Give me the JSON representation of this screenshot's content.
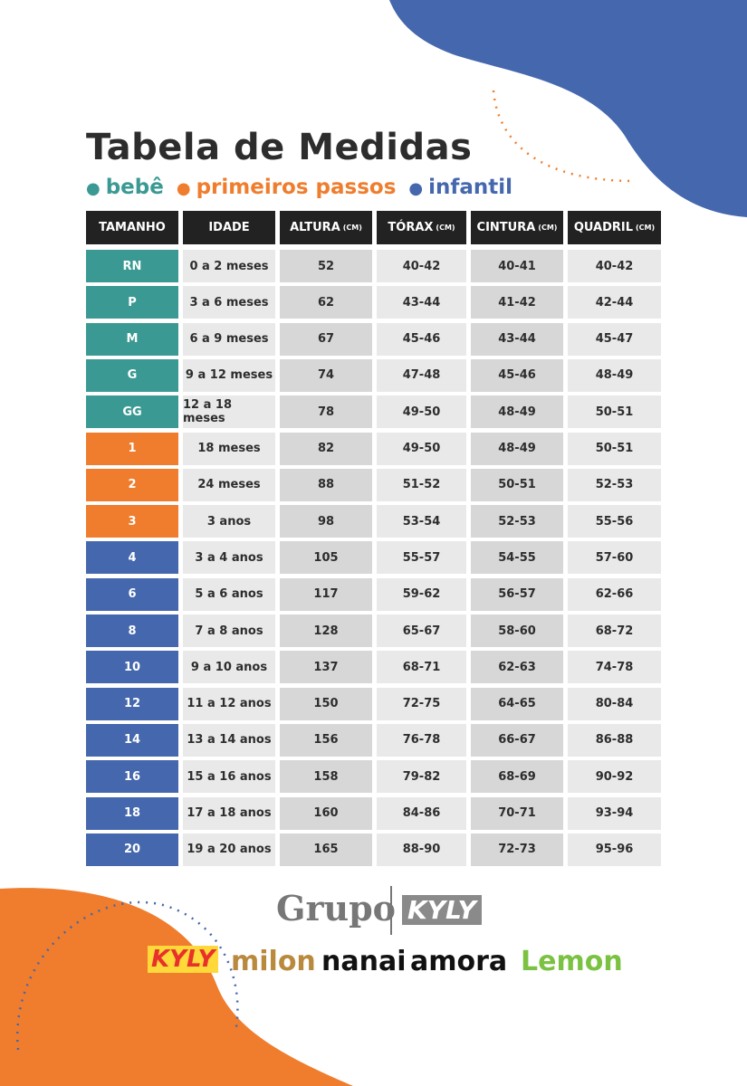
{
  "header": {
    "title": "Tabela de Medidas"
  },
  "table": {
    "columns": [
      {
        "label": "TAMANHO"
      },
      {
        "label": "IDADE"
      },
      {
        "label": "ALTURA",
        "unit": "(CM)"
      },
      {
        "label": "TÓRAX",
        "unit": "(CM)"
      },
      {
        "label": "CINTURA",
        "unit": "(CM)"
      },
      {
        "label": "QUADRIL",
        "unit": "(CM)"
      }
    ],
    "groups": [
      {
        "name": "bebê",
        "color": "#3a9a93",
        "rows": [
          [
            "RN",
            "0 a 2 meses",
            "52",
            "40-42",
            "40-41",
            "40-42"
          ],
          [
            "P",
            "3 a 6 meses",
            "62",
            "43-44",
            "41-42",
            "42-44"
          ],
          [
            "M",
            "6 a 9 meses",
            "67",
            "45-46",
            "43-44",
            "45-47"
          ],
          [
            "G",
            "9 a 12 meses",
            "74",
            "47-48",
            "45-46",
            "48-49"
          ],
          [
            "GG",
            "12 a 18 meses",
            "78",
            "49-50",
            "48-49",
            "50-51"
          ]
        ]
      },
      {
        "name": "primeiros passos",
        "color": "#ef7d2d",
        "rows": [
          [
            "1",
            "18 meses",
            "82",
            "49-50",
            "48-49",
            "50-51"
          ],
          [
            "2",
            "24 meses",
            "88",
            "51-52",
            "50-51",
            "52-53"
          ],
          [
            "3",
            "3 anos",
            "98",
            "53-54",
            "52-53",
            "55-56"
          ]
        ]
      },
      {
        "name": "infantil",
        "color": "#4467ad",
        "rows": [
          [
            "4",
            "3 a 4 anos",
            "105",
            "55-57",
            "54-55",
            "57-60"
          ],
          [
            "6",
            "5 a 6 anos",
            "117",
            "59-62",
            "56-57",
            "62-66"
          ],
          [
            "8",
            "7 a 8 anos",
            "128",
            "65-67",
            "58-60",
            "68-72"
          ],
          [
            "10",
            "9 a 10 anos",
            "137",
            "68-71",
            "62-63",
            "74-78"
          ],
          [
            "12",
            "11 a 12 anos",
            "150",
            "72-75",
            "64-65",
            "80-84"
          ],
          [
            "14",
            "13 a 14 anos",
            "156",
            "76-78",
            "66-67",
            "86-88"
          ],
          [
            "16",
            "15 a 16 anos",
            "158",
            "79-82",
            "68-69",
            "90-92"
          ],
          [
            "18",
            "17 a 18 anos",
            "160",
            "84-86",
            "70-71",
            "93-94"
          ],
          [
            "20",
            "19 a 20 anos",
            "165",
            "88-90",
            "72-73",
            "95-96"
          ]
        ]
      }
    ]
  },
  "footer": {
    "group_word": "Grupo",
    "group_brand": "KYLY",
    "brands": [
      {
        "label": "KYLY",
        "color": "#e8312a"
      },
      {
        "label": "milon",
        "color": "#b98a3e"
      },
      {
        "label": "nanai",
        "color": "#111111"
      },
      {
        "label": "amora",
        "color": "#111111"
      },
      {
        "label": "Lemon",
        "color": "#7cc242"
      }
    ]
  }
}
